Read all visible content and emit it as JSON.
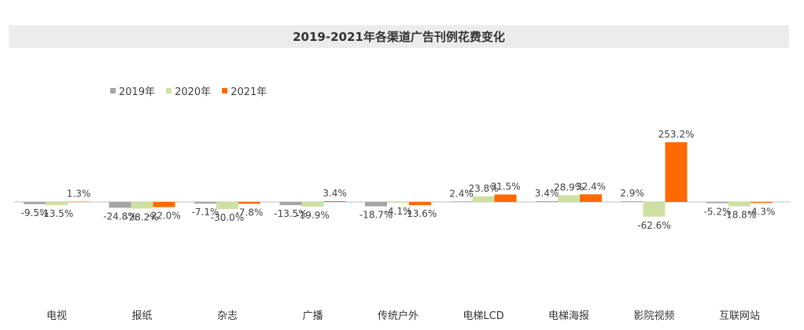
{
  "chart_data": {
    "type": "bar",
    "title": "2019-2021年各渠道广告刊例花费变化",
    "categories": [
      "电视",
      "报纸",
      "杂志",
      "广播",
      "传统户外",
      "电梯LCD",
      "电梯海报",
      "影院视频",
      "互联网站"
    ],
    "series": [
      {
        "name": "2019年",
        "color": "#a5a5a5",
        "values": [
          -9.5,
          -24.8,
          -7.1,
          -13.5,
          -18.7,
          2.4,
          3.4,
          2.9,
          -5.2
        ],
        "labels": [
          "-9.5%",
          "-24.8%",
          "-7.1%",
          "-13.5%",
          "-18.7%",
          "2.4%",
          "3.4%",
          "2.9%",
          "-5.2%"
        ]
      },
      {
        "name": "2020年",
        "color": "#cfe0a3",
        "values": [
          -13.5,
          -28.2,
          -30.0,
          -19.9,
          -4.1,
          23.8,
          28.9,
          -62.6,
          -18.8
        ],
        "labels": [
          "-13.5%",
          "-28.2%",
          "-30.0%",
          "-19.9%",
          "-4.1%",
          "23.8%",
          "28.9%",
          "-62.6%",
          "-18.8%"
        ]
      },
      {
        "name": "2021年",
        "color": "#ff6a00",
        "values": [
          1.3,
          -22.0,
          -7.8,
          3.4,
          -13.6,
          31.5,
          32.4,
          253.2,
          -4.3
        ],
        "labels": [
          "1.3%",
          "-22.0%",
          "-7.8%",
          "3.4%",
          "-13.6%",
          "31.5%",
          "32.4%",
          "253.2%",
          "-4.3%"
        ]
      }
    ],
    "legend_position": "top-left",
    "grid": false
  }
}
